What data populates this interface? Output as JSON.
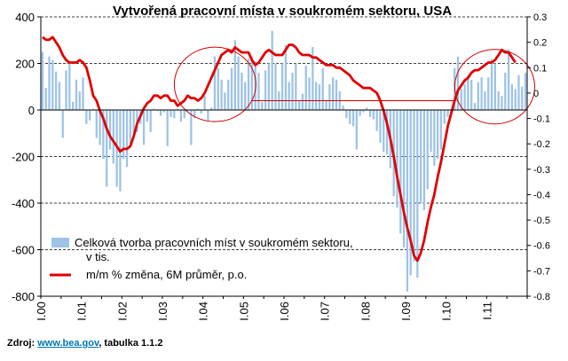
{
  "chart_data": {
    "type": "bar+line",
    "title": "Vytvořená pracovní místa v soukromém sektoru, USA",
    "source": {
      "prefix": "Zdroj:",
      "link": "www.bea.gov",
      "suffix": ", tabulka 1.1.2"
    },
    "x_tick_labels": [
      "I.00",
      "I.01",
      "I.02",
      "I.03",
      "I.04",
      "I.05",
      "I.06",
      "I.07",
      "I.08",
      "I.09",
      "I.10",
      "I.11"
    ],
    "x_start": "2000-01",
    "bars_per_year": 12,
    "y_left": {
      "ticks": [
        400,
        200,
        0,
        -200,
        -400,
        -600,
        -800
      ],
      "range": [
        -800,
        400
      ]
    },
    "y_right": {
      "ticks": [
        0.3,
        0.2,
        0.1,
        0,
        -0.1,
        -0.2,
        -0.3,
        -0.4,
        -0.5,
        -0.6,
        -0.7,
        -0.8
      ],
      "range": [
        -0.8,
        0.3
      ]
    },
    "grid": "horizontal dashed",
    "series": [
      {
        "name": "Celková tvorba pracovních míst v soukromém sektoru, v tis.",
        "type": "bar",
        "axis": "left",
        "color": "#9dc3e6",
        "values": [
          250,
          95,
          230,
          215,
          165,
          120,
          -120,
          170,
          200,
          35,
          130,
          80,
          140,
          -60,
          -45,
          5,
          -120,
          -150,
          -210,
          -330,
          -170,
          -230,
          -330,
          -350,
          -210,
          -245,
          -145,
          -100,
          -95,
          -60,
          -150,
          -50,
          -95,
          5,
          -5,
          -25,
          -10,
          -155,
          -30,
          -35,
          5,
          -50,
          -35,
          -5,
          -150,
          -35,
          5,
          -15,
          60,
          -45,
          10,
          230,
          180,
          130,
          75,
          130,
          180,
          300,
          230,
          160,
          120,
          220,
          230,
          210,
          160,
          35,
          170,
          200,
          340,
          200,
          80,
          200,
          280,
          120,
          160,
          200,
          40,
          70,
          190,
          140,
          270,
          120,
          110,
          180,
          40,
          110,
          140,
          130,
          80,
          20,
          -35,
          -60,
          -70,
          -170,
          -25,
          -10,
          10,
          -30,
          -40,
          -90,
          -140,
          -180,
          -190,
          -250,
          -370,
          -420,
          -530,
          -590,
          -780,
          -710,
          -650,
          -720,
          -400,
          -430,
          -340,
          -180,
          -240,
          -210,
          -170,
          -60,
          -30,
          -10,
          180,
          230,
          90,
          110,
          150,
          130,
          30,
          120,
          140,
          80,
          140,
          220,
          200,
          80,
          60,
          160,
          260,
          110,
          90,
          150,
          100,
          160
        ]
      },
      {
        "name": "m/m % změna, 6M průměr, p.o.",
        "type": "line",
        "axis": "right",
        "color": "#e00000",
        "values": [
          0.22,
          0.21,
          0.21,
          0.22,
          0.2,
          0.18,
          0.15,
          0.13,
          0.12,
          0.12,
          0.12,
          0.13,
          0.12,
          0.1,
          0.05,
          -0.01,
          -0.03,
          -0.07,
          -0.1,
          -0.14,
          -0.17,
          -0.19,
          -0.21,
          -0.23,
          -0.22,
          -0.22,
          -0.21,
          -0.17,
          -0.12,
          -0.09,
          -0.06,
          -0.04,
          -0.03,
          -0.01,
          -0.01,
          -0.02,
          -0.01,
          -0.01,
          -0.03,
          -0.03,
          -0.05,
          -0.04,
          -0.03,
          -0.01,
          -0.02,
          -0.02,
          -0.03,
          -0.02,
          0.0,
          0.03,
          0.06,
          0.09,
          0.12,
          0.15,
          0.16,
          0.17,
          0.16,
          0.18,
          0.17,
          0.16,
          0.16,
          0.16,
          0.13,
          0.11,
          0.12,
          0.14,
          0.16,
          0.17,
          0.16,
          0.15,
          0.15,
          0.15,
          0.17,
          0.19,
          0.19,
          0.18,
          0.16,
          0.15,
          0.15,
          0.15,
          0.14,
          0.14,
          0.13,
          0.12,
          0.11,
          0.11,
          0.11,
          0.1,
          0.1,
          0.09,
          0.08,
          0.07,
          0.05,
          0.04,
          0.03,
          0.02,
          0.02,
          0.02,
          0.01,
          0.0,
          -0.03,
          -0.07,
          -0.12,
          -0.18,
          -0.25,
          -0.33,
          -0.4,
          -0.47,
          -0.53,
          -0.58,
          -0.64,
          -0.66,
          -0.63,
          -0.58,
          -0.51,
          -0.45,
          -0.4,
          -0.33,
          -0.27,
          -0.2,
          -0.13,
          -0.08,
          -0.03,
          0.01,
          0.03,
          0.05,
          0.06,
          0.08,
          0.09,
          0.09,
          0.1,
          0.11,
          0.12,
          0.12,
          0.13,
          0.15,
          0.17,
          0.16,
          0.16,
          0.14,
          0.12
        ]
      }
    ],
    "annotations": [
      {
        "type": "circle",
        "around": "I.04–I.05",
        "color": "#d00000"
      },
      {
        "type": "circle",
        "around": "I.11",
        "color": "#d00000"
      },
      {
        "type": "connector-line",
        "from": "I.05",
        "to": "I.11",
        "color": "#d00000"
      }
    ],
    "legend": {
      "placement": "bottom-left inside plot"
    }
  }
}
